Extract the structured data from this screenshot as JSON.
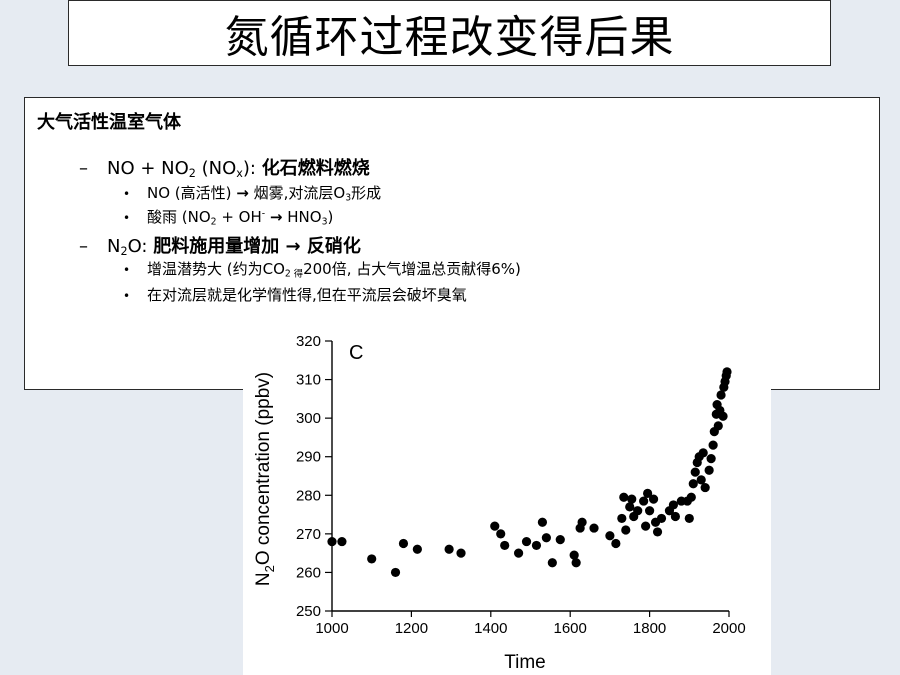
{
  "slide": {
    "title": "氮循环过程改变得后果",
    "heading": "大气活性温室气体",
    "items": [
      {
        "prefix": "NO + NO",
        "sub1": "2",
        "mid": " (NO",
        "sub2": "x",
        "after": "): ",
        "bold": "化石燃料燃烧",
        "children": [
          {
            "pre": "NO (高活性) ",
            "arrow": "→",
            "post": " 烟雾,对流层O",
            "sub": "3",
            "end": "形成"
          },
          {
            "pre": "酸雨 (NO",
            "sub1": "2",
            "mid": " + OH",
            "sup": "-",
            "arrow": "→",
            "post": " HNO",
            "sub2": "3",
            "end": ")"
          }
        ]
      },
      {
        "prefix": "N",
        "sub1": "2",
        "after": "O: ",
        "bold1": "肥料施用量增加 ",
        "arrow": "→",
        "bold2": " 反硝化",
        "children": [
          {
            "pre": "增温潜势大 (约为CO",
            "sub": "2 得",
            "post": "200倍, 占大气增温总贡献得6%)"
          },
          {
            "text": "在对流层就是化学惰性得,但在平流层会破坏臭氧"
          }
        ]
      }
    ]
  },
  "chart_data": {
    "type": "scatter",
    "panel_label": "C",
    "xlabel": "Time",
    "ylabel_parts": [
      "N",
      "2",
      "O concentration (ppbv)"
    ],
    "xlim": [
      1000,
      2000
    ],
    "ylim": [
      250,
      320
    ],
    "xticks": [
      1000,
      1200,
      1400,
      1600,
      1800,
      2000
    ],
    "yticks": [
      250,
      260,
      270,
      280,
      290,
      300,
      310,
      320
    ],
    "points": [
      [
        1000,
        268
      ],
      [
        1025,
        268
      ],
      [
        1100,
        263.5
      ],
      [
        1160,
        260
      ],
      [
        1180,
        267.5
      ],
      [
        1215,
        266
      ],
      [
        1295,
        266
      ],
      [
        1325,
        265
      ],
      [
        1410,
        272
      ],
      [
        1425,
        270
      ],
      [
        1435,
        267
      ],
      [
        1470,
        265
      ],
      [
        1490,
        268
      ],
      [
        1515,
        267
      ],
      [
        1530,
        273
      ],
      [
        1540,
        269
      ],
      [
        1555,
        262.5
      ],
      [
        1575,
        268.5
      ],
      [
        1610,
        264.5
      ],
      [
        1615,
        262.5
      ],
      [
        1625,
        271.5
      ],
      [
        1630,
        273
      ],
      [
        1660,
        271.5
      ],
      [
        1700,
        269.5
      ],
      [
        1715,
        267.5
      ],
      [
        1730,
        274
      ],
      [
        1735,
        279.5
      ],
      [
        1740,
        271
      ],
      [
        1750,
        277
      ],
      [
        1755,
        279
      ],
      [
        1760,
        274.5
      ],
      [
        1770,
        276
      ],
      [
        1785,
        278.5
      ],
      [
        1790,
        272
      ],
      [
        1795,
        280.5
      ],
      [
        1800,
        276
      ],
      [
        1810,
        279
      ],
      [
        1815,
        273
      ],
      [
        1820,
        270.5
      ],
      [
        1830,
        274
      ],
      [
        1850,
        276
      ],
      [
        1860,
        277.5
      ],
      [
        1865,
        274.5
      ],
      [
        1880,
        278.5
      ],
      [
        1895,
        278.5
      ],
      [
        1900,
        274
      ],
      [
        1905,
        279.5
      ],
      [
        1910,
        283
      ],
      [
        1915,
        286
      ],
      [
        1920,
        288.5
      ],
      [
        1925,
        290
      ],
      [
        1930,
        284
      ],
      [
        1935,
        291
      ],
      [
        1940,
        282
      ],
      [
        1950,
        286.5
      ],
      [
        1955,
        289.5
      ],
      [
        1960,
        293
      ],
      [
        1963,
        296.5
      ],
      [
        1968,
        301
      ],
      [
        1970,
        303.5
      ],
      [
        1973,
        298
      ],
      [
        1977,
        302
      ],
      [
        1980,
        306
      ],
      [
        1985,
        300.5
      ],
      [
        1987,
        308
      ],
      [
        1990,
        309.5
      ],
      [
        1993,
        311
      ],
      [
        1995,
        312
      ]
    ]
  }
}
